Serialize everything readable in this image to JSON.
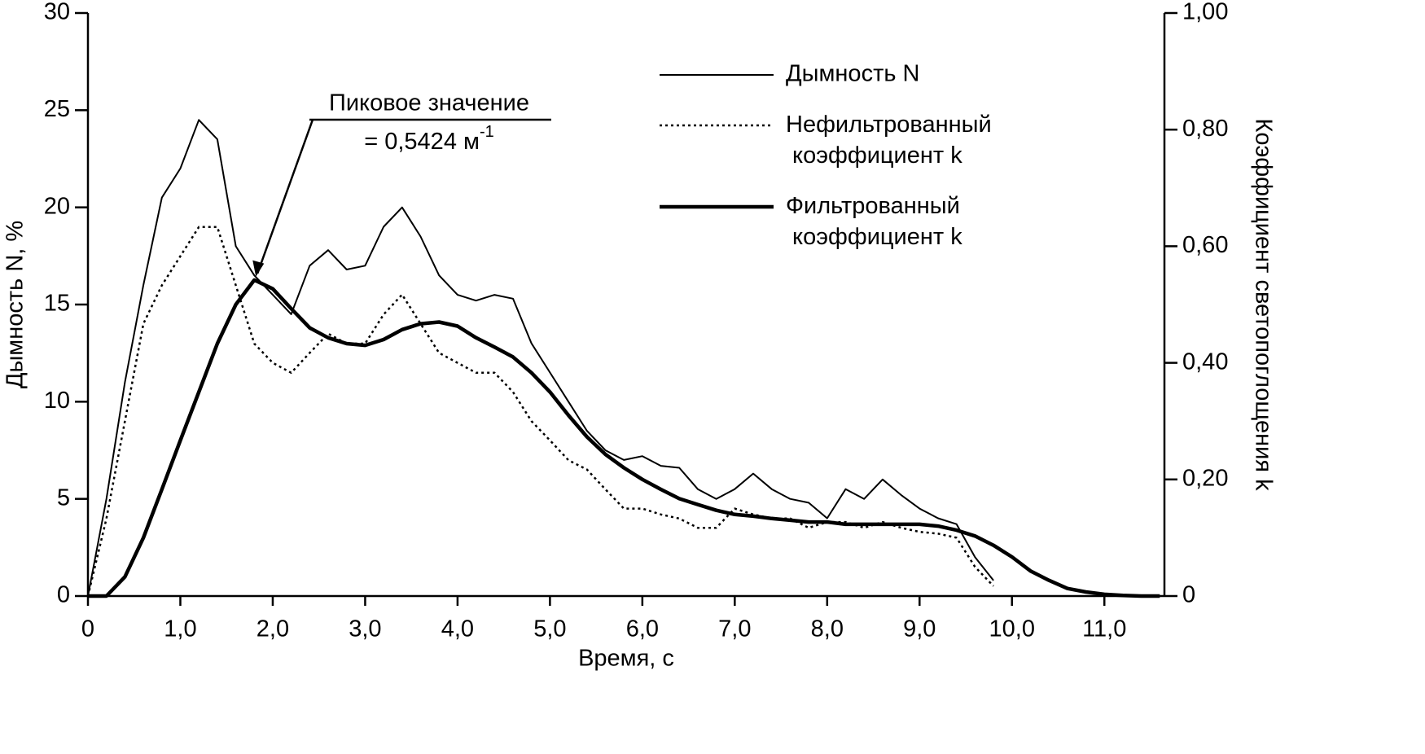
{
  "chart_data": {
    "type": "line",
    "x_label": "Время, с",
    "y_label": "Дымность N, %",
    "y2_label": "Коэффициент светопоглощения k",
    "annotation": {
      "text": "Пиковое значение",
      "value_text": "= 0,5424 м",
      "superscript": "-1",
      "x": 1.8,
      "value": 0.5424
    },
    "x": [
      0,
      0.2,
      0.4,
      0.6,
      0.8,
      1.0,
      1.2,
      1.4,
      1.6,
      1.8,
      2.0,
      2.2,
      2.4,
      2.6,
      2.8,
      3.0,
      3.2,
      3.4,
      3.6,
      3.8,
      4.0,
      4.2,
      4.4,
      4.6,
      4.8,
      5.0,
      5.2,
      5.4,
      5.6,
      5.8,
      6.0,
      6.2,
      6.4,
      6.6,
      6.8,
      7.0,
      7.2,
      7.4,
      7.6,
      7.8,
      8.0,
      8.2,
      8.4,
      8.6,
      8.8,
      9.0,
      9.2,
      9.4,
      9.6,
      9.8,
      10.0,
      10.2,
      10.4,
      10.6,
      10.8,
      11.0,
      11.2,
      11.4,
      11.6
    ],
    "series": [
      {
        "name": "Дымность N",
        "color": "#000000",
        "dash": "solid",
        "width": 2,
        "values": [
          0,
          5,
          11,
          16,
          20.5,
          22,
          24.5,
          23.5,
          18,
          16.5,
          15.5,
          14.5,
          17,
          17.8,
          16.8,
          17,
          19,
          20,
          18.5,
          16.5,
          15.5,
          15.2,
          15.5,
          15.3,
          13,
          11.5,
          10,
          8.5,
          7.5,
          7,
          7.2,
          6.7,
          6.6,
          5.5,
          5,
          5.5,
          6.3,
          5.5,
          5,
          4.8,
          4,
          5.5,
          5,
          6,
          5.2,
          4.5,
          4,
          3.7,
          2,
          0.8,
          null,
          null,
          null,
          null,
          null,
          null,
          null,
          null,
          null
        ]
      },
      {
        "name": "Нефильтрованный коэффициент k",
        "color": "#000000",
        "dash": "dotted",
        "width": 2.5,
        "axis": "y2",
        "values": [
          0,
          0.133,
          0.3,
          0.467,
          0.533,
          0.583,
          0.633,
          0.633,
          0.533,
          0.433,
          0.4,
          0.383,
          0.417,
          0.45,
          0.433,
          0.433,
          0.483,
          0.517,
          0.467,
          0.417,
          0.4,
          0.383,
          0.383,
          0.35,
          0.3,
          0.267,
          0.233,
          0.217,
          0.183,
          0.15,
          0.15,
          0.14,
          0.133,
          0.117,
          0.117,
          0.15,
          0.14,
          0.133,
          0.133,
          0.117,
          0.127,
          0.127,
          0.117,
          0.127,
          0.117,
          0.11,
          0.107,
          0.1,
          0.05,
          0.017,
          null,
          null,
          null,
          null,
          null,
          null,
          null,
          null,
          null
        ]
      },
      {
        "name": "Фильтрованный коэффициент k",
        "color": "#000000",
        "dash": "solid",
        "width": 4.5,
        "axis": "y2",
        "values": [
          0,
          0,
          0.033,
          0.1,
          0.183,
          0.267,
          0.35,
          0.433,
          0.5,
          0.542,
          0.527,
          0.493,
          0.46,
          0.443,
          0.433,
          0.43,
          0.44,
          0.457,
          0.467,
          0.47,
          0.463,
          0.443,
          0.427,
          0.41,
          0.383,
          0.35,
          0.31,
          0.273,
          0.243,
          0.22,
          0.2,
          0.183,
          0.167,
          0.157,
          0.147,
          0.14,
          0.137,
          0.133,
          0.13,
          0.127,
          0.127,
          0.123,
          0.123,
          0.123,
          0.123,
          0.123,
          0.12,
          0.113,
          0.103,
          0.087,
          0.067,
          0.043,
          0.027,
          0.013,
          0.007,
          0.003,
          0.001,
          0,
          0
        ]
      }
    ],
    "xlim": [
      0,
      11.65
    ],
    "xticks": [
      0,
      {
        "value": 1,
        "label": "1,0"
      },
      {
        "value": 2,
        "label": "2,0"
      },
      {
        "value": 3,
        "label": "3,0"
      },
      {
        "value": 4,
        "label": "4,0"
      },
      {
        "value": 5,
        "label": "5,0"
      },
      {
        "value": 6,
        "label": "6,0"
      },
      {
        "value": 7,
        "label": "7,0"
      },
      {
        "value": 8,
        "label": "8,0"
      },
      {
        "value": 9,
        "label": "9,0"
      },
      {
        "value": 10,
        "label": "10,0"
      },
      {
        "value": 11,
        "label": "11,0"
      }
    ],
    "ylim": [
      0,
      30
    ],
    "yticks": [
      0,
      5,
      10,
      15,
      20,
      25,
      30
    ],
    "y2lim": [
      0,
      1
    ],
    "y2ticks": [
      0,
      {
        "value": 0.2,
        "label": "0,20"
      },
      {
        "value": 0.4,
        "label": "0,40"
      },
      {
        "value": 0.6,
        "label": "0,60"
      },
      {
        "value": 0.8,
        "label": "0,80"
      },
      {
        "value": 1,
        "label": "1,00"
      }
    ],
    "grid": false,
    "legend": "upper right"
  }
}
